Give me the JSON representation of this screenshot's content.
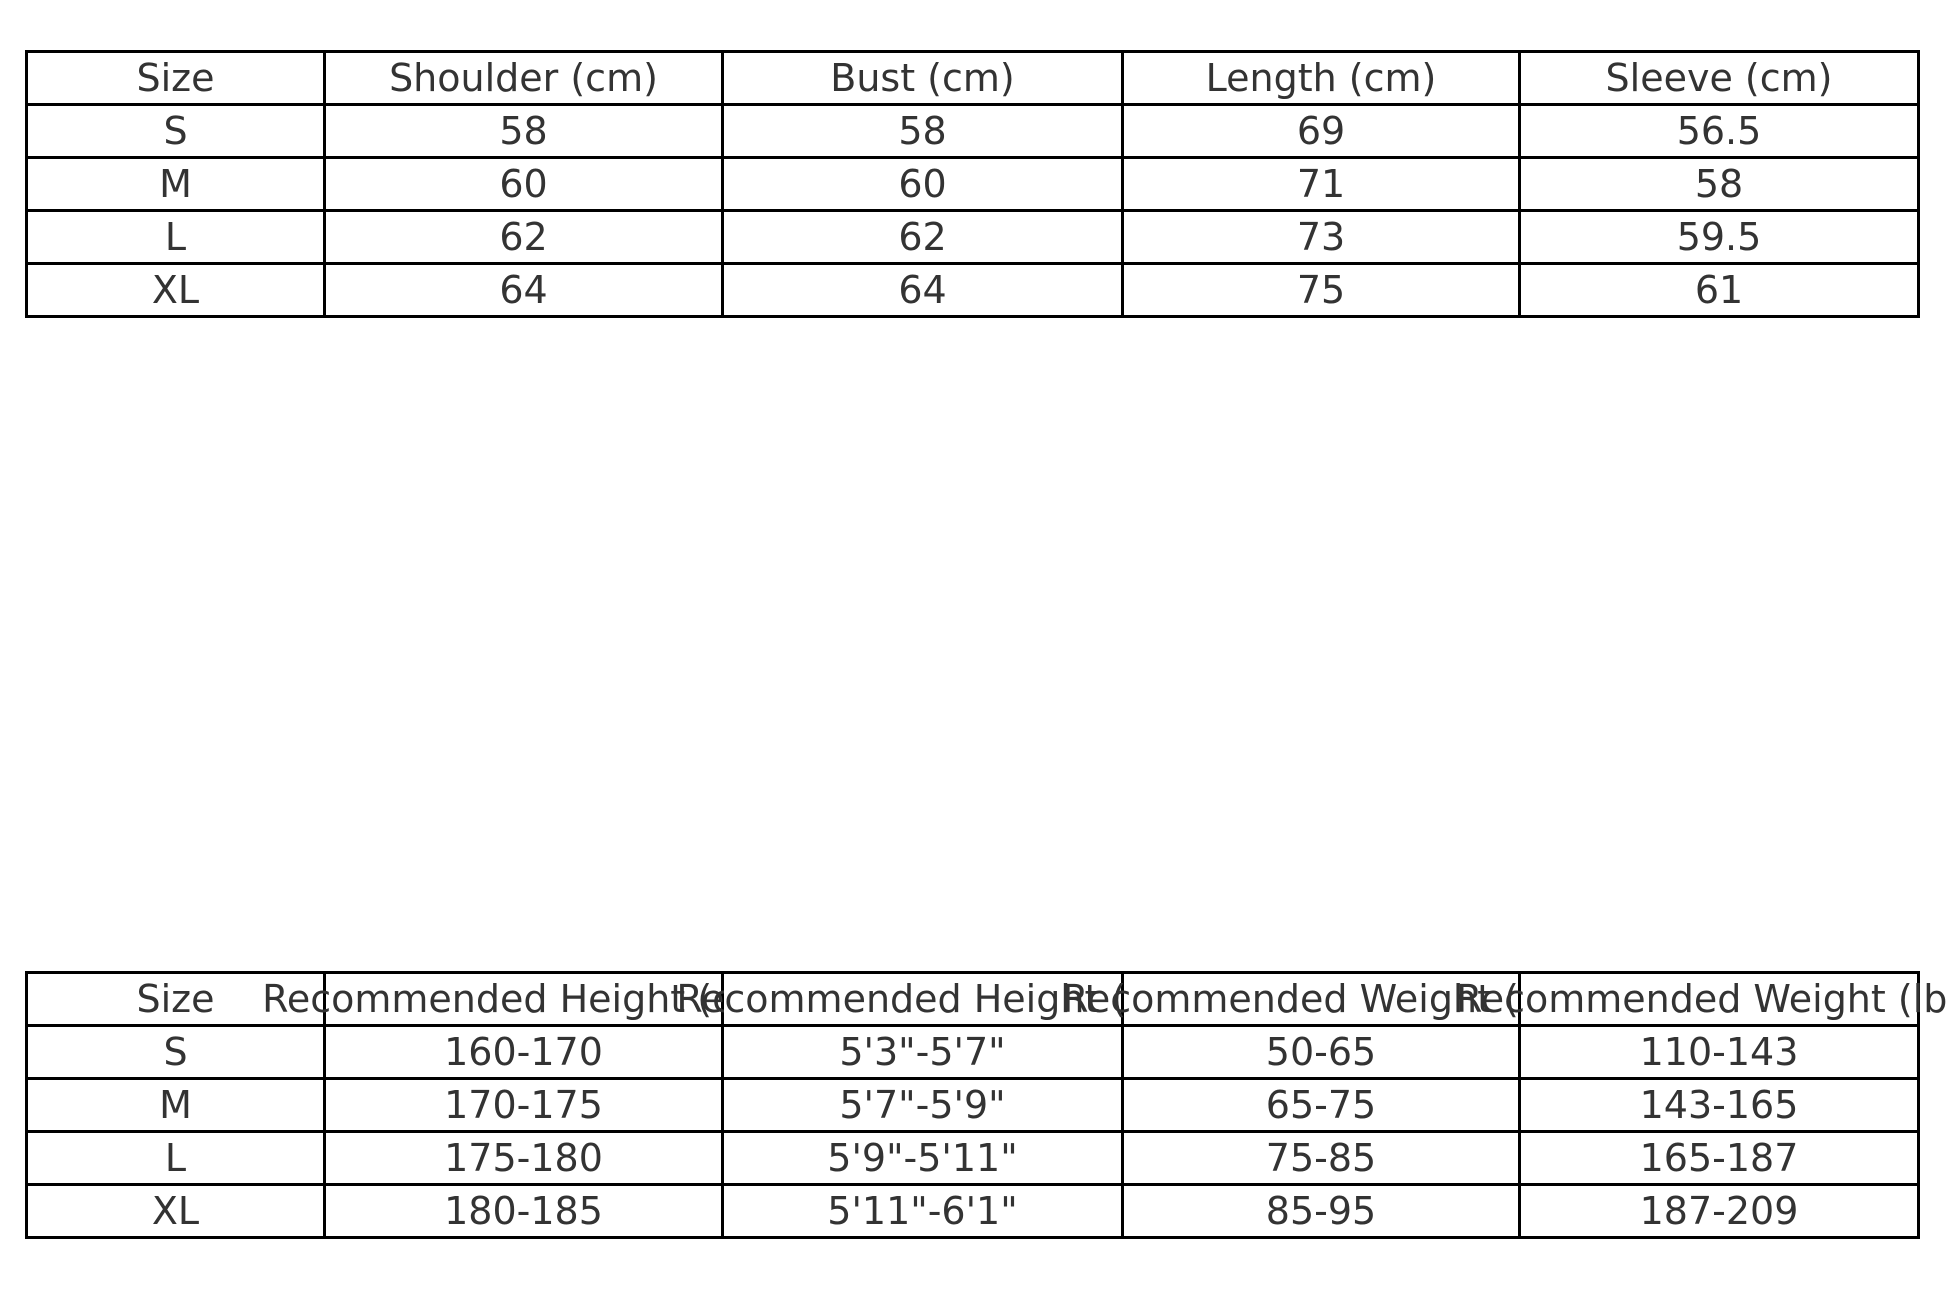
{
  "page": {
    "background_color": "#ffffff",
    "text_color": "#333333",
    "border_color": "#000000"
  },
  "size_chart_table": {
    "columns": [
      "Size",
      "Shoulder (cm)",
      "Bust (cm)",
      "Length (cm)",
      "Sleeve (cm)"
    ],
    "rows": [
      [
        "S",
        "58",
        "58",
        "69",
        "56.5"
      ],
      [
        "M",
        "60",
        "60",
        "71",
        "58"
      ],
      [
        "L",
        "62",
        "62",
        "73",
        "59.5"
      ],
      [
        "XL",
        "64",
        "64",
        "75",
        "61"
      ]
    ]
  },
  "fit_guide_table": {
    "columns": [
      "Size",
      "Recommended Height (cm)",
      "Recommended Height (ft)",
      "Recommended Weight (kg)",
      "Recommended Weight (lbs)"
    ],
    "rows": [
      [
        "S",
        "160-170",
        "5'3\"-5'7\"",
        "50-65",
        "110-143"
      ],
      [
        "M",
        "170-175",
        "5'7\"-5'9\"",
        "65-75",
        "143-165"
      ],
      [
        "L",
        "175-180",
        "5'9\"-5'11\"",
        "75-85",
        "165-187"
      ],
      [
        "XL",
        "180-185",
        "5'11\"-6'1\"",
        "85-95",
        "187-209"
      ]
    ]
  }
}
